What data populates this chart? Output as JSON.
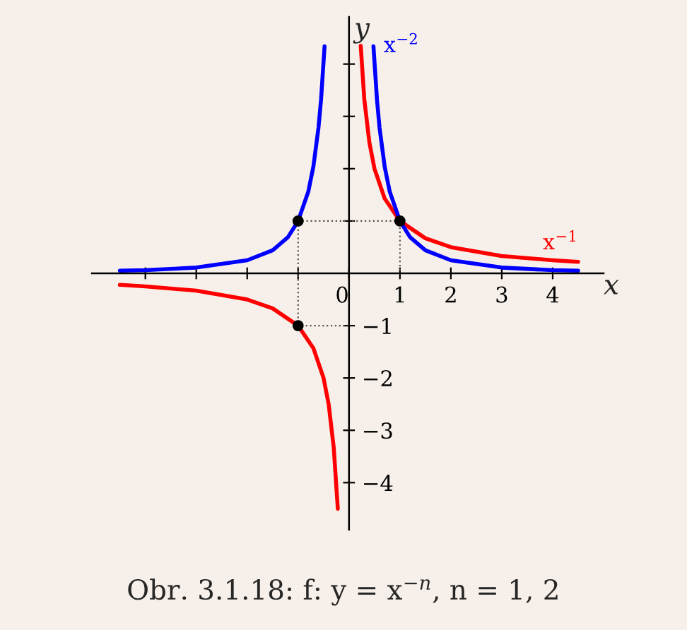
{
  "chart_data": {
    "type": "line",
    "xlabel": "x",
    "ylabel": "y",
    "xlim": [
      -5.05,
      5.0
    ],
    "ylim": [
      -4.9,
      4.9
    ],
    "xticks": [
      {
        "value": -4,
        "label": null
      },
      {
        "value": -3,
        "label": null
      },
      {
        "value": -2,
        "label": null
      },
      {
        "value": -1,
        "label": null
      },
      0,
      1,
      2,
      3,
      4
    ],
    "yticks": [
      {
        "value": -4,
        "label": "−4"
      },
      {
        "value": -3,
        "label": "−3"
      },
      {
        "value": -2,
        "label": "−2"
      },
      {
        "value": -1,
        "label": "−1"
      },
      {
        "value": 1,
        "label": null
      },
      {
        "value": 2,
        "label": null
      },
      {
        "value": 3,
        "label": null
      },
      {
        "value": 4,
        "label": null
      }
    ],
    "grid": false,
    "legend": false,
    "series": [
      {
        "name": "x$^{−1}$",
        "color": "#ff0000",
        "x": [
          -4.5,
          -4,
          -3,
          -2,
          -1.5,
          -1,
          -0.7,
          -0.5,
          -0.4,
          -0.3,
          -0.22,
          0,
          0.23,
          0.3,
          0.4,
          0.5,
          0.7,
          1,
          1.5,
          2,
          3,
          4,
          4.5
        ],
        "values": [
          -0.22,
          -0.25,
          -0.33,
          -0.5,
          -0.67,
          -1,
          -1.43,
          -2,
          -2.5,
          -3.33,
          -4.5,
          null,
          4.35,
          3.33,
          2.5,
          2,
          1.43,
          1,
          0.67,
          0.5,
          0.33,
          0.25,
          0.22
        ]
      },
      {
        "name": "x$^{−2}$",
        "color": "#0000ff",
        "x": [
          -4.5,
          -4,
          -3,
          -2,
          -1.5,
          -1.2,
          -1,
          -0.8,
          -0.7,
          -0.6,
          -0.55,
          -0.48,
          0,
          0.48,
          0.55,
          0.6,
          0.7,
          0.8,
          1,
          1.2,
          1.5,
          2,
          3,
          4,
          4.5
        ],
        "values": [
          0.05,
          0.06,
          0.11,
          0.25,
          0.44,
          0.69,
          1,
          1.56,
          2.04,
          2.78,
          3.31,
          4.34,
          null,
          4.34,
          3.31,
          2.78,
          2.04,
          1.56,
          1,
          0.69,
          0.44,
          0.25,
          0.11,
          0.06,
          0.05
        ]
      },
      {
        "type": "line",
        "line_style": "dotted",
        "color": "#555555",
        "x": [
          -1,
          1,
          1,
          null,
          -1,
          -1,
          0
        ],
        "values": [
          1,
          1,
          0,
          null,
          1,
          -1,
          -1
        ]
      },
      {
        "type": "scatter",
        "marker": "circle",
        "color": "#000000",
        "x": [
          -1,
          1,
          -1
        ],
        "values": [
          1,
          1,
          -1
        ]
      }
    ],
    "annotations": [
      "Obr. 3.1.18: f: y = x$^{−n}$, n = 1, 2"
    ]
  }
}
